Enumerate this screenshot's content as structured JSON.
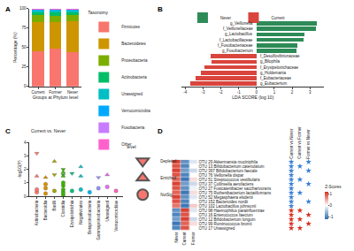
{
  "chart_data": [
    {
      "panel": "A",
      "type": "bar",
      "stacked": true,
      "categories": [
        "Current",
        "Former",
        "Never"
      ],
      "x_label": "Groups at Phylum level",
      "y_label": "Percentage (%)",
      "legend_title": "Taxonomy",
      "ylim": [
        0,
        100
      ],
      "yticks": [
        0,
        25,
        50,
        75,
        100
      ],
      "series": [
        {
          "name": "Firmicutes",
          "color": "#F8766D",
          "values": [
            45,
            48,
            44
          ]
        },
        {
          "name": "Bacteroidetes",
          "color": "#CD9600",
          "values": [
            38,
            35,
            40
          ]
        },
        {
          "name": "Proteobacteria",
          "color": "#7CAE00",
          "values": [
            8,
            7,
            7
          ]
        },
        {
          "name": "Actinobacteria",
          "color": "#00BE67",
          "values": [
            5,
            6,
            5
          ]
        },
        {
          "name": "Unassigned",
          "color": "#00BFC4",
          "values": [
            2,
            2,
            2
          ]
        },
        {
          "name": "Verrucomicrobia",
          "color": "#00A9FF",
          "values": [
            1,
            1.5,
            1.5
          ]
        },
        {
          "name": "Fusobacteria",
          "color": "#C77CFF",
          "values": [
            0.5,
            0.3,
            0.3
          ]
        },
        {
          "name": "Other",
          "color": "#FF61CC",
          "values": [
            0.5,
            0.2,
            0.2
          ]
        }
      ]
    },
    {
      "panel": "B",
      "type": "bar",
      "orientation": "horizontal",
      "tick_labels": "x",
      "categories": [
        "g_Veillonella",
        "f_Veillonellaceae",
        "g_Lactobacillus",
        "f_Lactobacillaceae",
        "f_Fusobacteriaceae",
        "g_Fusobacterium",
        "f_Desulfovibrionaceae",
        "g_Bilophila",
        "f_Erysipelotrichaceae",
        "g_Holdemania",
        "f_Eubacteriaceae",
        "g_Eubacterium"
      ],
      "x_label": "LDA SCORE (log 10)",
      "xlim": [
        -4.2,
        3.8
      ],
      "xticks": [
        -4,
        -3,
        -2,
        -1,
        0,
        1,
        2,
        3
      ],
      "legend": "top",
      "series": [
        {
          "name": "Current",
          "color": "#D9453C",
          "values": [
            null,
            null,
            null,
            null,
            null,
            null,
            -2.6,
            -2.55,
            -2.9,
            -3.1,
            -3.4,
            -3.7
          ]
        },
        {
          "name": "Never",
          "color": "#2E8B57",
          "values": [
            3.4,
            3.35,
            2.7,
            2.65,
            2.3,
            2.25,
            null,
            null,
            null,
            null,
            null,
            null
          ]
        }
      ]
    },
    {
      "panel": "C",
      "type": "scatter",
      "title": "Current vs. Never",
      "y_label": "-log10(P)",
      "legend_title": "level",
      "categories": [
        "Actinobacteria",
        "Bacteroidia",
        "Bacilli",
        "Clostridia",
        "Erysipelotrichia",
        "Negativicutes",
        "Betaproteobacteria",
        "Gammaproteobacteria",
        "Unassigned",
        "Verrucomicrobiae"
      ],
      "ylim": [
        0,
        4
      ],
      "yticks": [
        0,
        1,
        2,
        3,
        4
      ],
      "series": [
        {
          "name": "Depleted",
          "marker": "triangle-down",
          "x": [
            "Actinobacteria",
            "Bacilli",
            "Clostridia",
            "Clostridia",
            "Erysipelotrichia",
            "Gammaproteobacteria"
          ],
          "values": [
            3.2,
            1.6,
            1.6,
            2.0,
            1.7,
            1.4
          ],
          "colors": [
            "#F8766D",
            "#A3A500",
            "#39B600",
            "#39B600",
            "#00BF7D",
            "#9590FF"
          ]
        },
        {
          "name": "Enriched",
          "marker": "triangle-up",
          "x": [
            "Actinobacteria",
            "Bacteroidia",
            "Bacilli",
            "Clostridia",
            "Clostridia",
            "Negativicutes",
            "Negativicutes",
            "Unassigned"
          ],
          "values": [
            1.5,
            1.4,
            2.6,
            1.5,
            1.8,
            2.2,
            1.5,
            1.6
          ],
          "colors": [
            "#F8766D",
            "#D89000",
            "#A3A500",
            "#39B600",
            "#39B600",
            "#00BFC4",
            "#00BFC4",
            "#E76BF3"
          ]
        },
        {
          "name": "NotSig",
          "marker": "circle",
          "x": [
            "Actinobacteria",
            "Actinobacteria",
            "Bacteroidia",
            "Bacteroidia",
            "Bacteroidia",
            "Bacilli",
            "Clostridia",
            "Clostridia",
            "Clostridia",
            "Clostridia",
            "Clostridia",
            "Erysipelotrichia",
            "Negativicutes",
            "Betaproteobacteria",
            "Gammaproteobacteria",
            "Unassigned",
            "Verrucomicrobiae"
          ],
          "values": [
            0.3,
            0.5,
            0.2,
            0.6,
            0.9,
            0.4,
            0.1,
            0.3,
            0.5,
            0.8,
            1.0,
            0.4,
            0.5,
            0.3,
            0.6,
            0.7,
            0.4
          ],
          "colors": [
            "#F8766D",
            "#F8766D",
            "#D89000",
            "#D89000",
            "#D89000",
            "#A3A500",
            "#39B600",
            "#39B600",
            "#39B600",
            "#39B600",
            "#39B600",
            "#00BF7D",
            "#00BFC4",
            "#00B0F6",
            "#9590FF",
            "#E76BF3",
            "#FF62BC"
          ]
        }
      ]
    },
    {
      "panel": "D",
      "type": "heatmap",
      "x": [
        "Never",
        "Current",
        "Former"
      ],
      "rows": [
        "OTU 29 Akkermansia muciniphila",
        "OTU 13 Bifidobacterium catenulatum",
        "OTU 397 Bifidobacterium faecale",
        "OTU 76 Veillonella dispar",
        "OTU 51 Streptococcus vestibularis",
        "OTU 37 Collinsella aerofaciens",
        "OTU 27 Fusicatenibacter saccharivorans",
        "OTU 75 Ruthenibacterium lactatiformans",
        "OTU 52 Megasphaera elsdenii",
        "OTU 152 Bacteroides nordii",
        "OTU 102 Lactobacillus johnsonii",
        "OTU 98 Haemophilus parainfluenzae",
        "OTU 16 Enterococcus faecium",
        "OTU 12 Bifidobacterium longum",
        "OTU 99 Ruminococcus bromii",
        "OTU 17 Unassigned"
      ],
      "cells": [
        [
          1.1,
          -0.9,
          -0.2
        ],
        [
          1.0,
          -1.0,
          0.0
        ],
        [
          1.1,
          -0.8,
          -0.3
        ],
        [
          1.0,
          -1.0,
          0.0
        ],
        [
          0.9,
          -1.1,
          0.2
        ],
        [
          1.1,
          -0.8,
          -0.3
        ],
        [
          1.0,
          -0.9,
          -0.1
        ],
        [
          0.9,
          -1.1,
          0.2
        ],
        [
          1.1,
          -0.9,
          -0.2
        ],
        [
          1.0,
          -1.0,
          0.0
        ],
        [
          0.8,
          -1.1,
          0.3
        ],
        [
          -0.9,
          1.1,
          -0.2
        ],
        [
          -1.0,
          1.0,
          0.0
        ],
        [
          -0.8,
          1.1,
          -0.3
        ],
        [
          -1.1,
          0.9,
          0.2
        ],
        [
          -1.0,
          1.0,
          0.0
        ]
      ],
      "colorbar": {
        "title": "Z-Scores",
        "range": [
          -1.2,
          1.2
        ],
        "ticks": [
          -1,
          0,
          1
        ]
      },
      "comparisons": [
        "Current vs Never",
        "Current vs Former",
        "Former vs Never"
      ],
      "stars": [
        [
          "#3A7FD5",
          null,
          "#3A7FD5"
        ],
        [
          "#3A7FD5",
          "#3A7FD5",
          null
        ],
        [
          "#3A7FD5",
          null,
          "#3A7FD5"
        ],
        [
          "#3A7FD5",
          null,
          null
        ],
        [
          "#3A7FD5",
          "#3A7FD5",
          null
        ],
        [
          "#3A7FD5",
          null,
          "#3A7FD5"
        ],
        [
          "#3A7FD5",
          null,
          null
        ],
        [
          "#3A7FD5",
          "#3A7FD5",
          null
        ],
        [
          "#3A7FD5",
          null,
          null
        ],
        [
          "#3A7FD5",
          null,
          "#3A7FD5"
        ],
        [
          "#3A7FD5",
          null,
          null
        ],
        [
          "#D7301F",
          "#D7301F",
          null
        ],
        [
          "#D7301F",
          null,
          "#D7301F"
        ],
        [
          "#D7301F",
          "#D7301F",
          null
        ],
        [
          "#D7301F",
          null,
          "#D7301F"
        ],
        [
          "#D7301F",
          "#D7301F",
          null
        ]
      ]
    }
  ]
}
